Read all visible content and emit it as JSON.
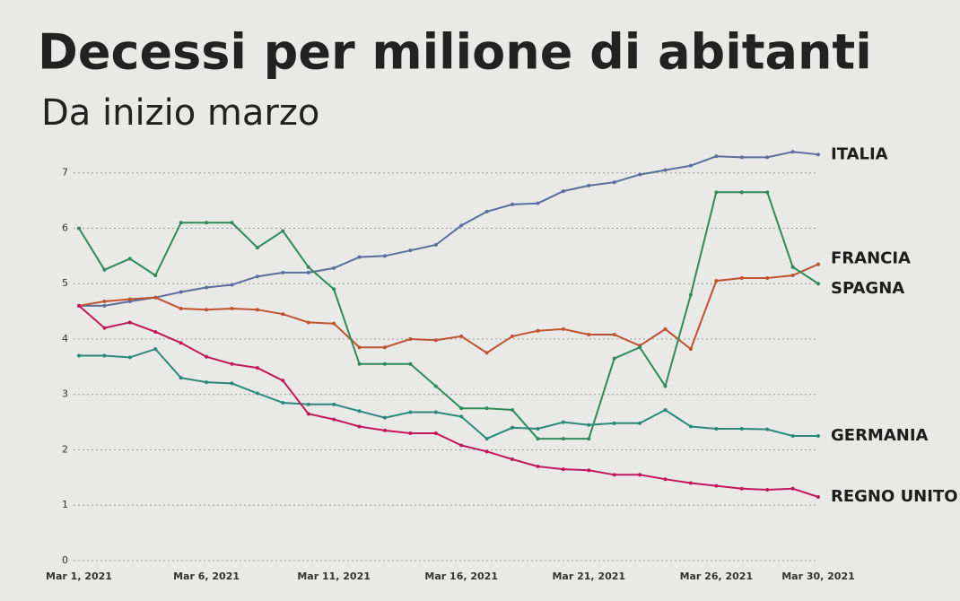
{
  "chart_data": {
    "type": "line",
    "title": "Decessi per milione di abitanti",
    "subtitle": "Da inizio marzo",
    "categories": [
      "Mar 1, 2021",
      null,
      null,
      null,
      null,
      "Mar 6, 2021",
      null,
      null,
      null,
      null,
      "Mar 11, 2021",
      null,
      null,
      null,
      null,
      "Mar 16, 2021",
      null,
      null,
      null,
      null,
      "Mar 21, 2021",
      null,
      null,
      null,
      null,
      "Mar 26, 2021",
      null,
      null,
      null,
      "Mar 30, 2021"
    ],
    "ylim": [
      0,
      7.4
    ],
    "yticks": [
      0,
      1,
      2,
      3,
      4,
      5,
      6,
      7
    ],
    "grid": true,
    "series": [
      {
        "name": "ITALIA",
        "color": "#5a6f9e",
        "values": [
          4.6,
          4.6,
          4.68,
          4.75,
          4.85,
          4.93,
          4.98,
          5.13,
          5.2,
          5.2,
          5.28,
          5.48,
          5.5,
          5.6,
          5.7,
          6.05,
          6.3,
          6.43,
          6.45,
          6.67,
          6.77,
          6.83,
          6.97,
          7.05,
          7.13,
          7.3,
          7.28,
          7.28,
          7.38,
          7.33
        ]
      },
      {
        "name": "FRANCIA",
        "color": "#c0532e",
        "values": [
          4.6,
          4.68,
          4.72,
          4.75,
          4.55,
          4.53,
          4.55,
          4.53,
          4.45,
          4.3,
          4.28,
          3.85,
          3.85,
          4.0,
          3.98,
          4.05,
          3.75,
          4.05,
          4.15,
          4.18,
          4.08,
          4.08,
          3.88,
          4.18,
          3.82,
          5.05,
          5.1,
          5.1,
          5.15,
          5.35
        ]
      },
      {
        "name": "SPAGNA",
        "color": "#2e8b57",
        "values": [
          6.0,
          5.25,
          5.45,
          5.15,
          6.1,
          6.1,
          6.1,
          5.65,
          5.95,
          5.3,
          4.9,
          3.55,
          3.55,
          3.55,
          3.15,
          2.75,
          2.75,
          2.72,
          2.2,
          2.2,
          2.2,
          3.65,
          3.85,
          3.15,
          4.8,
          6.65,
          6.65,
          6.65,
          5.3,
          5.0
        ]
      },
      {
        "name": "GERMANIA",
        "color": "#2a8a7a",
        "values": [
          3.7,
          3.7,
          3.67,
          3.82,
          3.3,
          3.22,
          3.2,
          3.02,
          2.85,
          2.82,
          2.82,
          2.7,
          2.58,
          2.68,
          2.68,
          2.6,
          2.2,
          2.4,
          2.38,
          2.5,
          2.45,
          2.48,
          2.48,
          2.72,
          2.42,
          2.38,
          2.38,
          2.37,
          2.25,
          2.25
        ]
      },
      {
        "name": "REGNO UNITO",
        "color": "#c2185b",
        "values": [
          4.6,
          4.2,
          4.3,
          4.13,
          3.93,
          3.68,
          3.55,
          3.48,
          3.25,
          2.65,
          2.55,
          2.42,
          2.35,
          2.3,
          2.3,
          2.08,
          1.97,
          1.83,
          1.7,
          1.65,
          1.63,
          1.55,
          1.55,
          1.47,
          1.4,
          1.35,
          1.3,
          1.28,
          1.3,
          1.15
        ]
      }
    ]
  }
}
